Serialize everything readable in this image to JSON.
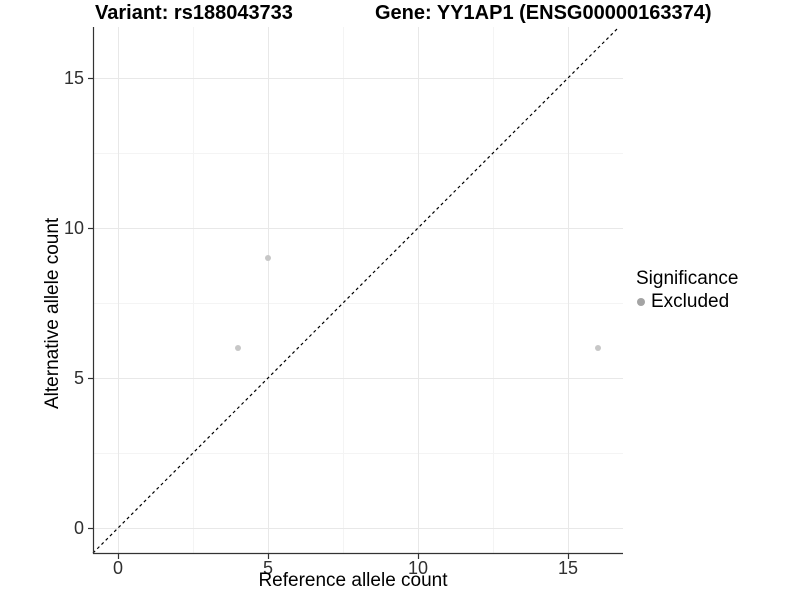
{
  "titles": {
    "variant": "Variant: rs188043733",
    "gene": "Gene: YY1AP1 (ENSG00000163374)"
  },
  "axes": {
    "x": {
      "label": "Reference allele count",
      "ticks": [
        "0",
        "5",
        "10",
        "15"
      ]
    },
    "y": {
      "label": "Alternative allele count",
      "ticks": [
        "0",
        "5",
        "10",
        "15"
      ]
    }
  },
  "legend": {
    "title": "Significance",
    "items": [
      {
        "label": "Excluded",
        "color": "#a4a4a4"
      }
    ]
  },
  "colors": {
    "point": "#c7c7c7",
    "legend_point": "#a4a4a4",
    "axis_line": "#333333",
    "grid_major": "#e8e8e8",
    "grid_minor": "#f4f4f4",
    "identity_line": "#000000",
    "tick_label": "#303030"
  },
  "chart_data": {
    "type": "scatter",
    "title_left": "Variant: rs188043733",
    "title_right": "Gene: YY1AP1 (ENSG00000163374)",
    "xlabel": "Reference allele count",
    "ylabel": "Alternative allele count",
    "xlim": [
      -0.8333,
      16.8333
    ],
    "ylim": [
      -0.8333,
      16.7
    ],
    "x_major_ticks": [
      0,
      5,
      10,
      15
    ],
    "y_major_ticks": [
      0,
      5,
      10,
      15
    ],
    "x_minor_ticks": [
      2.5,
      7.5,
      12.5
    ],
    "y_minor_ticks": [
      2.5,
      7.5,
      12.5
    ],
    "grid": true,
    "legend_position": "right",
    "legend_title": "Significance",
    "identity_line": {
      "style": "dashed",
      "from": [
        -0.8333,
        -0.8333
      ],
      "to": [
        16.7,
        16.7
      ]
    },
    "series": [
      {
        "name": "Excluded",
        "points": [
          {
            "x": 4,
            "y": 6
          },
          {
            "x": 5,
            "y": 9
          },
          {
            "x": 16,
            "y": 6
          }
        ]
      }
    ]
  }
}
